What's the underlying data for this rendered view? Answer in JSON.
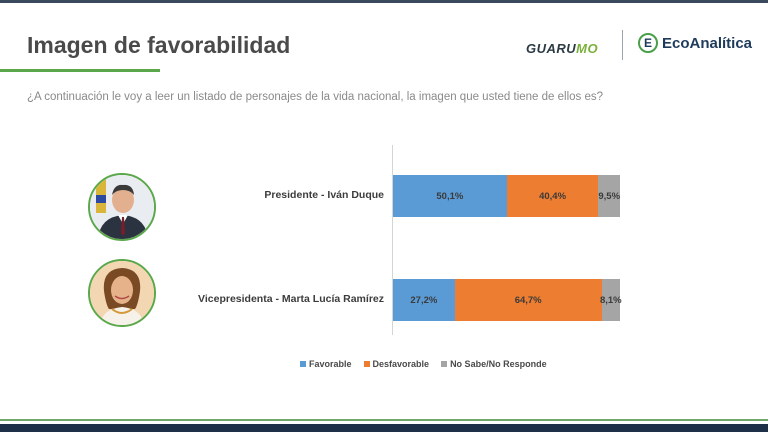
{
  "slide": {
    "title": "Imagen de favorabilidad",
    "question": "¿A continuación le voy a leer un listado de personajes de la vida nacional, la imagen que usted tiene de ellos es?"
  },
  "logos": {
    "guarumo_main": "GUARU",
    "guarumo_accent": "MO",
    "ecoanalitica_mark": "E",
    "ecoanalitica_text": "EcoAnalítica"
  },
  "colors": {
    "favorable": "#5b9bd5",
    "desfavorable": "#ed7d31",
    "no_sabe": "#a5a5a5",
    "accent_green": "#5aa84a",
    "footer_navy": "#1e3048"
  },
  "chart_data": {
    "type": "bar",
    "orientation": "horizontal",
    "stacked": true,
    "percent": true,
    "categories": [
      "Presidente - Iván Duque",
      "Vicepresidenta - Marta Lucía Ramírez"
    ],
    "series": [
      {
        "name": "Favorable",
        "values": [
          50.1,
          27.2
        ],
        "labels": [
          "50,1%",
          "27,2%"
        ]
      },
      {
        "name": "Desfavorable",
        "values": [
          40.4,
          64.7
        ],
        "labels": [
          "40,4%",
          "64,7%"
        ]
      },
      {
        "name": "No Sabe/No Responde",
        "values": [
          9.5,
          8.1
        ],
        "labels": [
          "9,5%",
          "8,1%"
        ]
      }
    ],
    "xlim": [
      0,
      100
    ],
    "legend_position": "bottom",
    "grid": false
  }
}
